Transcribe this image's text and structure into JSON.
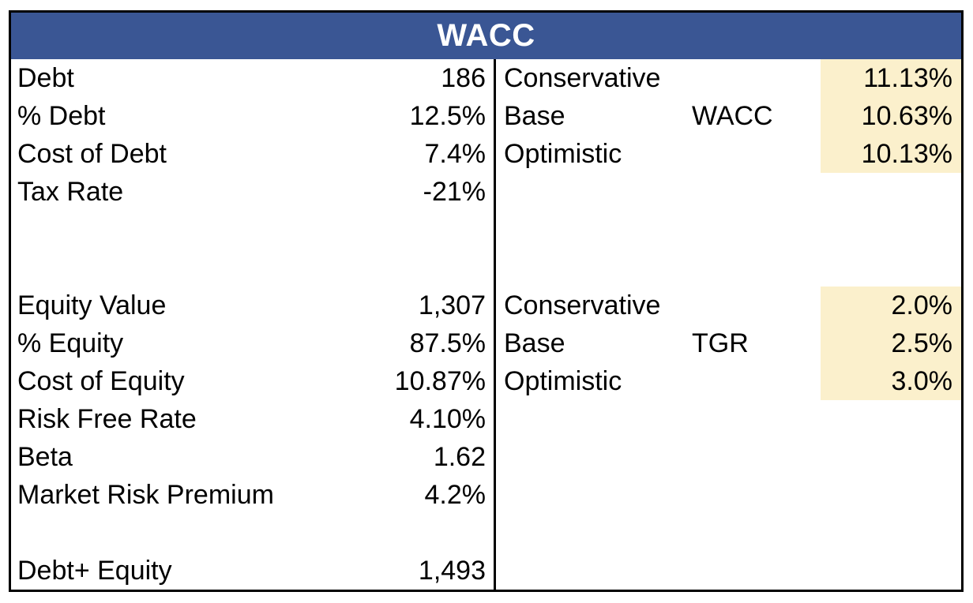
{
  "title": "WACC",
  "colors": {
    "header_bg": "#3A5694",
    "header_text": "#FFFFFF",
    "highlight_bg": "#FBF0CC",
    "border": "#000000",
    "text": "#000000"
  },
  "left_rows": [
    {
      "label": "Debt",
      "value": "186"
    },
    {
      "label": "% Debt",
      "value": "12.5%"
    },
    {
      "label": "Cost of Debt",
      "value": "7.4%"
    },
    {
      "label": "Tax Rate",
      "value": "-21%"
    },
    {
      "label": "",
      "value": ""
    },
    {
      "label": "",
      "value": ""
    },
    {
      "label": "Equity Value",
      "value": "1,307"
    },
    {
      "label": "% Equity",
      "value": "87.5%"
    },
    {
      "label": "Cost of Equity",
      "value": "10.87%"
    },
    {
      "label": "Risk Free Rate",
      "value": "4.10%"
    },
    {
      "label": "Beta",
      "value": "1.62"
    },
    {
      "label": "Market Risk Premium",
      "value": "4.2%"
    },
    {
      "label": "",
      "value": ""
    },
    {
      "label": "Debt+ Equity",
      "value": "1,493"
    }
  ],
  "right_rows": [
    {
      "scenario": "Conservative",
      "metric": "",
      "value": "11.13%",
      "highlight": true
    },
    {
      "scenario": "Base",
      "metric": "WACC",
      "value": "10.63%",
      "highlight": true
    },
    {
      "scenario": "Optimistic",
      "metric": "",
      "value": "10.13%",
      "highlight": true
    },
    {
      "scenario": "",
      "metric": "",
      "value": "",
      "highlight": false
    },
    {
      "scenario": "",
      "metric": "",
      "value": "",
      "highlight": false
    },
    {
      "scenario": "",
      "metric": "",
      "value": "",
      "highlight": false
    },
    {
      "scenario": "Conservative",
      "metric": "",
      "value": "2.0%",
      "highlight": true
    },
    {
      "scenario": "Base",
      "metric": "TGR",
      "value": "2.5%",
      "highlight": true
    },
    {
      "scenario": "Optimistic",
      "metric": "",
      "value": "3.0%",
      "highlight": true
    },
    {
      "scenario": "",
      "metric": "",
      "value": "",
      "highlight": false
    },
    {
      "scenario": "",
      "metric": "",
      "value": "",
      "highlight": false
    },
    {
      "scenario": "",
      "metric": "",
      "value": "",
      "highlight": false
    },
    {
      "scenario": "",
      "metric": "",
      "value": "",
      "highlight": false
    },
    {
      "scenario": "",
      "metric": "",
      "value": "",
      "highlight": false
    }
  ]
}
